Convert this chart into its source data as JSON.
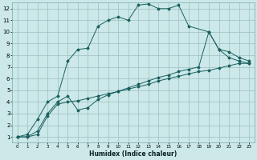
{
  "xlabel": "Humidex (Indice chaleur)",
  "bg_color": "#cce8e8",
  "grid_color": "#9bbfbf",
  "line_color": "#1a6060",
  "xlim": [
    -0.5,
    23.5
  ],
  "ylim": [
    0.5,
    12.5
  ],
  "xticks": [
    0,
    1,
    2,
    3,
    4,
    5,
    6,
    7,
    8,
    9,
    10,
    11,
    12,
    13,
    14,
    15,
    16,
    17,
    18,
    19,
    20,
    21,
    22,
    23
  ],
  "yticks": [
    1,
    2,
    3,
    4,
    5,
    6,
    7,
    8,
    9,
    10,
    11,
    12
  ],
  "s1_x": [
    0,
    1,
    2,
    3,
    4,
    5,
    6,
    7,
    8,
    9,
    10,
    11,
    12,
    13,
    14,
    15,
    16,
    17,
    19,
    20,
    21,
    22,
    23
  ],
  "s1_y": [
    1.0,
    1.2,
    2.5,
    4.0,
    4.5,
    7.5,
    8.5,
    8.6,
    10.5,
    11.0,
    11.3,
    11.0,
    12.3,
    12.4,
    12.0,
    12.0,
    12.3,
    10.5,
    10.0,
    8.5,
    7.8,
    7.5,
    7.3
  ],
  "s2_x": [
    0,
    1,
    2,
    3,
    4,
    5,
    6,
    7,
    8,
    9,
    10,
    11,
    12,
    13,
    14,
    15,
    16,
    17,
    18,
    19,
    20,
    21,
    22,
    23
  ],
  "s2_y": [
    1.0,
    1.0,
    1.5,
    3.0,
    4.0,
    4.5,
    3.3,
    3.5,
    4.2,
    4.6,
    4.9,
    5.2,
    5.5,
    5.8,
    6.1,
    6.3,
    6.6,
    6.8,
    7.0,
    10.0,
    8.5,
    8.3,
    7.8,
    7.5
  ],
  "s3_x": [
    0,
    1,
    2,
    3,
    4,
    5,
    6,
    7,
    8,
    9,
    10,
    11,
    12,
    13,
    14,
    15,
    16,
    17,
    18,
    19,
    20,
    21,
    22,
    23
  ],
  "s3_y": [
    1.0,
    1.0,
    1.2,
    2.8,
    3.8,
    4.0,
    4.1,
    4.3,
    4.5,
    4.7,
    4.9,
    5.1,
    5.3,
    5.5,
    5.8,
    6.0,
    6.2,
    6.4,
    6.6,
    6.7,
    6.9,
    7.1,
    7.3,
    7.3
  ]
}
